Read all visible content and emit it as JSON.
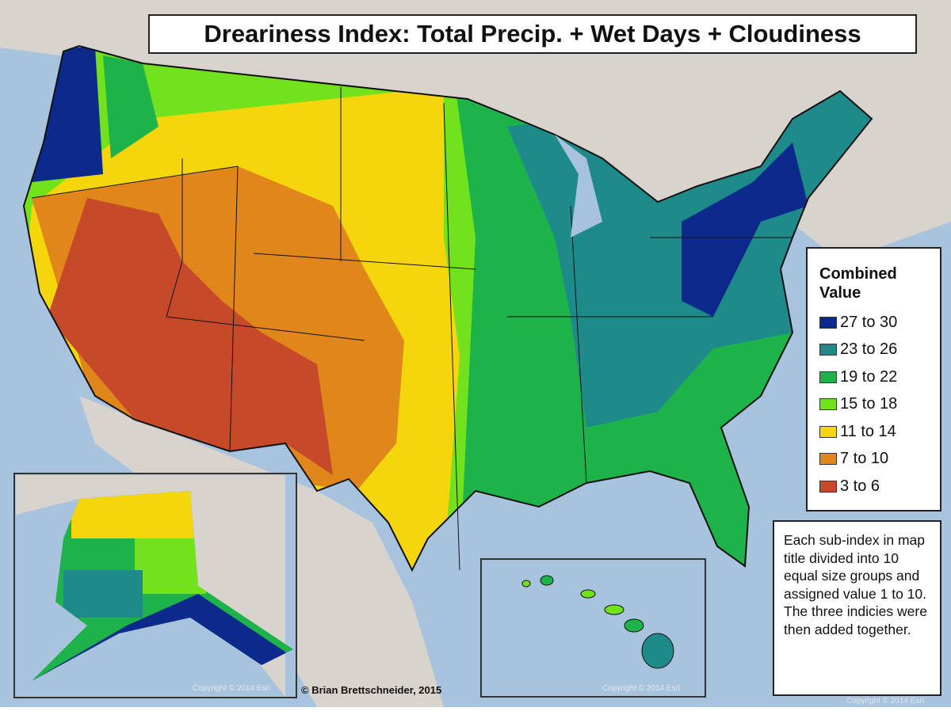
{
  "title": "Dreariness Index: Total Precip. + Wet Days + Cloudiness",
  "legend": {
    "title_line1": "Combined",
    "title_line2": "Value",
    "items": [
      {
        "label": "27 to 30",
        "color": "#0b2a8c"
      },
      {
        "label": "23 to 26",
        "color": "#1e8a8a"
      },
      {
        "label": "19 to 22",
        "color": "#1db34a"
      },
      {
        "label": "15 to 18",
        "color": "#72e21c"
      },
      {
        "label": "11 to 14",
        "color": "#f5d50c"
      },
      {
        "label": "7 to 10",
        "color": "#e0861a"
      },
      {
        "label": "3 to 6",
        "color": "#c64a2a"
      }
    ]
  },
  "note": "Each sub-index in map title divided into 10 equal size groups and assigned value 1 to 10. The three indicies were then added together.",
  "credit": "© Brian Brettschneider, 2015",
  "copyright_alaska": "Copyright © 2014 Esri",
  "copyright_hawaii": "Copyright © 2014 Esri",
  "copyright_main": "Copyright © 2014 Esri",
  "colors": {
    "ocean": "#a8c3de",
    "land": "#d9d3cd"
  }
}
